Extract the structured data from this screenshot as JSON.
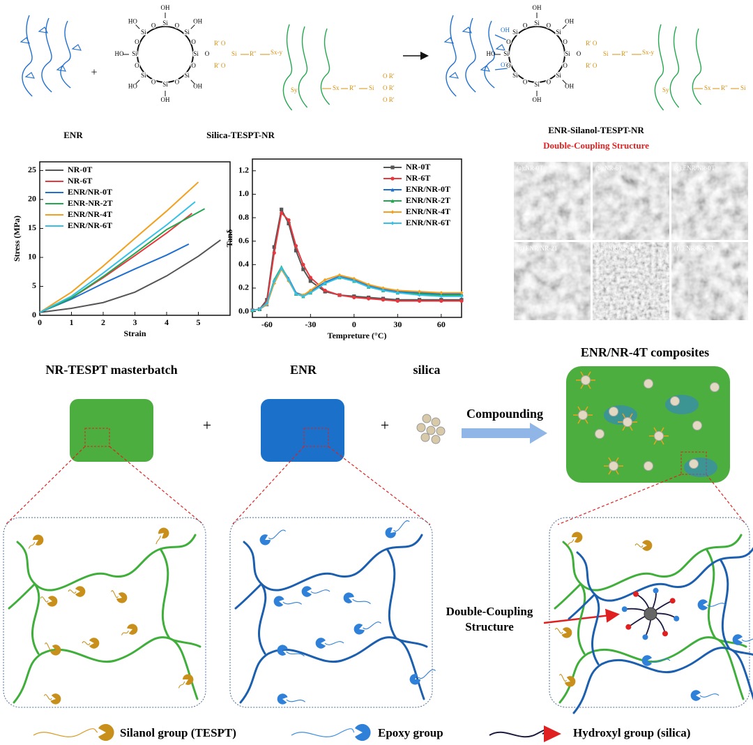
{
  "scheme": {
    "plus": "+",
    "ring": {
      "si": "Si",
      "o": "O",
      "oh": "OH",
      "ho": "HO"
    },
    "silane": {
      "r_o": "R' O",
      "si": "Si",
      "r2": "R''",
      "sxy": "Sx-y",
      "sy": "Sy",
      "sx": "Sx",
      "o_r": "O R'"
    },
    "enr_label": "ENR",
    "silica_label": "Silica-TESPT-NR",
    "product_label": "ENR-Silanol-TESPT-NR",
    "product_subtitle": "Double-Coupling Structure"
  },
  "chart_data": [
    {
      "type": "line",
      "xlabel": "Strain",
      "ylabel": "Stress (MPa)",
      "xlim": [
        0,
        6
      ],
      "ylim": [
        0,
        26.5
      ],
      "xticks": [
        0,
        1,
        2,
        3,
        4,
        5
      ],
      "yticks": [
        0,
        5,
        10,
        15,
        20,
        25
      ],
      "legend": "upper left",
      "series": [
        {
          "name": "NR-0T",
          "color": "#555555",
          "x": [
            0,
            1,
            2,
            3,
            4,
            5,
            5.7
          ],
          "values": [
            0.5,
            1.2,
            2.2,
            4,
            6.8,
            10.2,
            13
          ]
        },
        {
          "name": "NR-6T",
          "color": "#e8383d",
          "x": [
            0,
            1,
            2,
            3,
            4,
            4.8
          ],
          "values": [
            0.5,
            3,
            6.5,
            10.3,
            14.2,
            17.6
          ]
        },
        {
          "name": "ENR/NR-0T",
          "color": "#1f6fd0",
          "x": [
            0,
            1,
            2,
            3,
            4,
            4.7
          ],
          "values": [
            0.5,
            2.8,
            5.5,
            8,
            10.4,
            12.3
          ]
        },
        {
          "name": "ENR-NR-2T",
          "color": "#22a84f",
          "x": [
            0,
            1,
            2,
            3,
            4,
            5.2
          ],
          "values": [
            0.5,
            3,
            6.7,
            10.7,
            14.8,
            18.4
          ]
        },
        {
          "name": "ENR/NR-4T",
          "color": "#f2a01e",
          "x": [
            0,
            1,
            2,
            3,
            4,
            5
          ],
          "values": [
            0.5,
            4,
            8.5,
            13.3,
            18,
            23
          ]
        },
        {
          "name": "ENR/NR-6T",
          "color": "#35c0e8",
          "x": [
            0,
            1,
            2,
            3,
            4,
            4.9
          ],
          "values": [
            0.5,
            3.3,
            7.3,
            11.5,
            15.6,
            19.6
          ]
        }
      ]
    },
    {
      "type": "line",
      "xlabel": "Tempreture (°C)",
      "ylabel": "Tanδ",
      "xlim": [
        -70,
        74
      ],
      "ylim": [
        -0.05,
        1.3
      ],
      "xticks": [
        -60,
        -30,
        0,
        30,
        60
      ],
      "yticks": [
        {
          "value": 0,
          "label": "0.0"
        },
        0.2,
        0.4,
        0.6,
        0.8,
        {
          "value": 1,
          "label": "1.0"
        },
        1.2
      ],
      "legend": "upper right",
      "series": [
        {
          "name": "NR-0T",
          "color": "#555555",
          "marker": "square",
          "x": [
            -70,
            -65,
            -60,
            -55,
            -50,
            -45,
            -40,
            -35,
            -30,
            -20,
            -10,
            0,
            10,
            20,
            30,
            45,
            60,
            74
          ],
          "values": [
            0.01,
            0.02,
            0.1,
            0.55,
            0.87,
            0.75,
            0.52,
            0.36,
            0.26,
            0.17,
            0.14,
            0.13,
            0.12,
            0.11,
            0.1,
            0.1,
            0.1,
            0.1
          ]
        },
        {
          "name": "NR-6T",
          "color": "#e8383d",
          "marker": "circle",
          "x": [
            -70,
            -65,
            -60,
            -55,
            -50,
            -45,
            -40,
            -35,
            -30,
            -20,
            -10,
            0,
            10,
            20,
            30,
            45,
            60,
            74
          ],
          "values": [
            0.01,
            0.02,
            0.08,
            0.5,
            0.84,
            0.78,
            0.56,
            0.4,
            0.29,
            0.18,
            0.14,
            0.12,
            0.11,
            0.1,
            0.09,
            0.09,
            0.09,
            0.09
          ]
        },
        {
          "name": "ENR/NR-0T",
          "color": "#1f6fd0",
          "marker": "triangle",
          "x": [
            -70,
            -65,
            -60,
            -55,
            -50,
            -45,
            -40,
            -35,
            -30,
            -20,
            -10,
            0,
            10,
            20,
            30,
            45,
            60,
            74
          ],
          "values": [
            0.01,
            0.02,
            0.06,
            0.25,
            0.37,
            0.28,
            0.16,
            0.14,
            0.17,
            0.25,
            0.3,
            0.27,
            0.22,
            0.19,
            0.17,
            0.16,
            0.15,
            0.15
          ]
        },
        {
          "name": "ENR/NR-2T",
          "color": "#22a84f",
          "marker": "triangle",
          "x": [
            -70,
            -65,
            -60,
            -55,
            -50,
            -45,
            -40,
            -35,
            -30,
            -20,
            -10,
            0,
            10,
            20,
            30,
            45,
            60,
            74
          ],
          "values": [
            0.01,
            0.02,
            0.07,
            0.27,
            0.38,
            0.27,
            0.15,
            0.13,
            0.16,
            0.24,
            0.29,
            0.26,
            0.21,
            0.18,
            0.16,
            0.15,
            0.14,
            0.14
          ]
        },
        {
          "name": "ENR/NR-4T",
          "color": "#f2a01e",
          "marker": "diamond",
          "x": [
            -70,
            -65,
            -60,
            -55,
            -50,
            -45,
            -40,
            -35,
            -30,
            -20,
            -10,
            0,
            10,
            20,
            30,
            45,
            60,
            74
          ],
          "values": [
            0.01,
            0.02,
            0.06,
            0.24,
            0.36,
            0.26,
            0.15,
            0.14,
            0.18,
            0.27,
            0.31,
            0.28,
            0.23,
            0.2,
            0.18,
            0.17,
            0.16,
            0.16
          ]
        },
        {
          "name": "ENR/NR-6T",
          "color": "#35c0e8",
          "marker": "diamond",
          "x": [
            -70,
            -65,
            -60,
            -55,
            -50,
            -45,
            -40,
            -35,
            -30,
            -20,
            -10,
            0,
            10,
            20,
            30,
            45,
            60,
            74
          ],
          "values": [
            0.01,
            0.02,
            0.07,
            0.26,
            0.37,
            0.27,
            0.15,
            0.13,
            0.16,
            0.24,
            0.29,
            0.26,
            0.21,
            0.18,
            0.16,
            0.14,
            0.13,
            0.13
          ]
        }
      ]
    }
  ],
  "micrographs": [
    "(a):NR-0T",
    "(b):NR-6T",
    "(c):ENR/NR-0T",
    "(d):ENR/NR-2T",
    "(e):ENR/NR-4T",
    "(f):ENR/NR-6T"
  ],
  "process": {
    "masterbatch": "NR-TESPT masterbatch",
    "enr": "ENR",
    "silica": "silica",
    "plus": "+",
    "arrow": "Compounding",
    "composite": "ENR/NR-4T composites",
    "callout": [
      "Double-Coupling",
      "Structure"
    ]
  },
  "legend": [
    "Silanol group (TESPT)",
    "Epoxy group",
    "Hydroxyl group (silica)"
  ]
}
